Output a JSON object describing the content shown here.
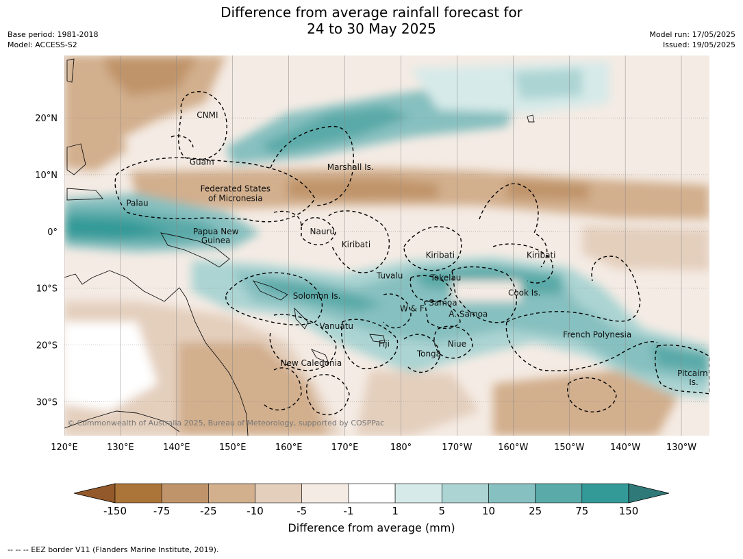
{
  "title": {
    "line1": "Difference from average rainfall forecast for",
    "line2": "24 to 30 May 2025"
  },
  "meta_left": [
    "Base period: 1981-2018",
    "Model: ACCESS-S2"
  ],
  "meta_right": [
    "Model run: 17/05/2025",
    "Issued: 19/05/2025"
  ],
  "map": {
    "lon_range": [
      120,
      235
    ],
    "lat_range": [
      -36,
      31
    ],
    "lon_ticks": [
      {
        "lon": 120,
        "label": "120°E"
      },
      {
        "lon": 130,
        "label": "130°E"
      },
      {
        "lon": 140,
        "label": "140°E"
      },
      {
        "lon": 150,
        "label": "150°E"
      },
      {
        "lon": 160,
        "label": "160°E"
      },
      {
        "lon": 170,
        "label": "170°E"
      },
      {
        "lon": 180,
        "label": "180°"
      },
      {
        "lon": 190,
        "label": "170°W"
      },
      {
        "lon": 200,
        "label": "160°W"
      },
      {
        "lon": 210,
        "label": "150°W"
      },
      {
        "lon": 220,
        "label": "140°W"
      },
      {
        "lon": 230,
        "label": "130°W"
      }
    ],
    "lat_ticks": [
      {
        "lat": 20,
        "label": "20°N"
      },
      {
        "lat": 10,
        "label": "10°N"
      },
      {
        "lat": 0,
        "label": "0°"
      },
      {
        "lat": -10,
        "label": "10°S"
      },
      {
        "lat": -20,
        "label": "20°S"
      },
      {
        "lat": -30,
        "label": "30°S"
      }
    ],
    "copyright": "© Commonwealth of Australia 2025, Bureau of Meteorology, supported by COSPPac",
    "regions": [
      {
        "label": "CNMI",
        "lon": 145.5,
        "lat": 20.5
      },
      {
        "label": "Guam",
        "lon": 144.5,
        "lat": 12.2
      },
      {
        "label": "Marshall Is.",
        "lon": 171,
        "lat": 11.3
      },
      {
        "label": "Federated States",
        "lon": 150.5,
        "lat": 7.5
      },
      {
        "label": "of Micronesia",
        "lon": 150.5,
        "lat": 5.8
      },
      {
        "label": "Palau",
        "lon": 133,
        "lat": 5
      },
      {
        "label": "Papua New",
        "lon": 147,
        "lat": 0
      },
      {
        "label": "Guinea",
        "lon": 147,
        "lat": -1.6
      },
      {
        "label": "Nauru",
        "lon": 166,
        "lat": 0
      },
      {
        "label": "Kiribati",
        "lon": 172,
        "lat": -2.3
      },
      {
        "label": "Kiribati",
        "lon": 187,
        "lat": -4.2
      },
      {
        "label": "Kiribati",
        "lon": 205,
        "lat": -4.2
      },
      {
        "label": "Tuvalu",
        "lon": 178,
        "lat": -7.8
      },
      {
        "label": "Tokelau",
        "lon": 188,
        "lat": -8.2
      },
      {
        "label": "Cook Is.",
        "lon": 202,
        "lat": -10.8
      },
      {
        "label": "Solomon Is.",
        "lon": 165,
        "lat": -11.4
      },
      {
        "label": "W & F",
        "lon": 182,
        "lat": -13.6
      },
      {
        "label": "Samoa",
        "lon": 187.5,
        "lat": -12.6
      },
      {
        "label": "A. Samoa",
        "lon": 192,
        "lat": -14.6
      },
      {
        "label": "Vanuatu",
        "lon": 168.5,
        "lat": -16.7
      },
      {
        "label": "Fiji",
        "lon": 177,
        "lat": -19.8
      },
      {
        "label": "Niue",
        "lon": 190,
        "lat": -19.8
      },
      {
        "label": "Tonga",
        "lon": 185,
        "lat": -21.6
      },
      {
        "label": "French Polynesia",
        "lon": 215,
        "lat": -18.2
      },
      {
        "label": "New Caledonia",
        "lon": 164,
        "lat": -23.2
      },
      {
        "label": "Pitcairn",
        "lon": 232,
        "lat": -25
      },
      {
        "label": "Is.",
        "lon": 232.2,
        "lat": -26.6
      }
    ]
  },
  "colorbar": {
    "caption": "Difference from average (mm)",
    "tick_labels": [
      "-150",
      "-75",
      "-25",
      "-10",
      "-5",
      "-1",
      "1",
      "5",
      "10",
      "25",
      "75",
      "150"
    ],
    "colors": [
      "#ab7439",
      "#c0946a",
      "#d2af8d",
      "#e4cfbd",
      "#f4ebe4",
      "#ffffff",
      "#d6eae9",
      "#abd4d3",
      "#87c0c0",
      "#5aaaa9",
      "#339a98"
    ],
    "extend_low_color": "#93592a",
    "extend_high_color": "#2f7978"
  },
  "footer": "--  --  -- EEZ border V11 (Flanders Marine Institute, 2019)."
}
